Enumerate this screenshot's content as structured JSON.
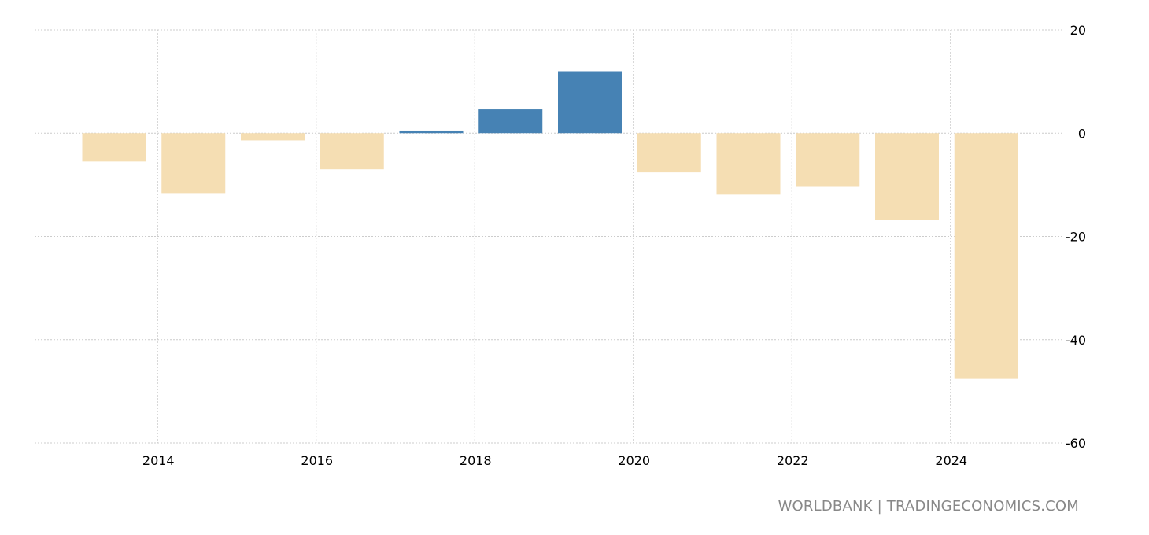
{
  "chart_data": {
    "type": "bar",
    "title": "",
    "xlabel": "",
    "ylabel": "",
    "categories": [
      "2013",
      "2014",
      "2015",
      "2016",
      "2017",
      "2018",
      "2019",
      "2020",
      "2021",
      "2022",
      "2023",
      "2024"
    ],
    "values": [
      -5.5,
      -11.6,
      -1.4,
      -7.0,
      0.5,
      4.6,
      12.0,
      -7.6,
      -11.9,
      -10.4,
      -16.8,
      -47.6
    ],
    "ylim": [
      -60,
      20
    ],
    "yticks": [
      20,
      0,
      -20,
      -40,
      -60
    ],
    "xticks": [
      "2014",
      "2016",
      "2018",
      "2020",
      "2022",
      "2024"
    ],
    "grid": true,
    "y_axis_side": "right",
    "colors": {
      "positive": "#4682b4",
      "negative": "#f5deb3",
      "grid": "#cccccc"
    }
  },
  "footer": {
    "source": "WORLDBANK | TRADINGECONOMICS.COM"
  }
}
